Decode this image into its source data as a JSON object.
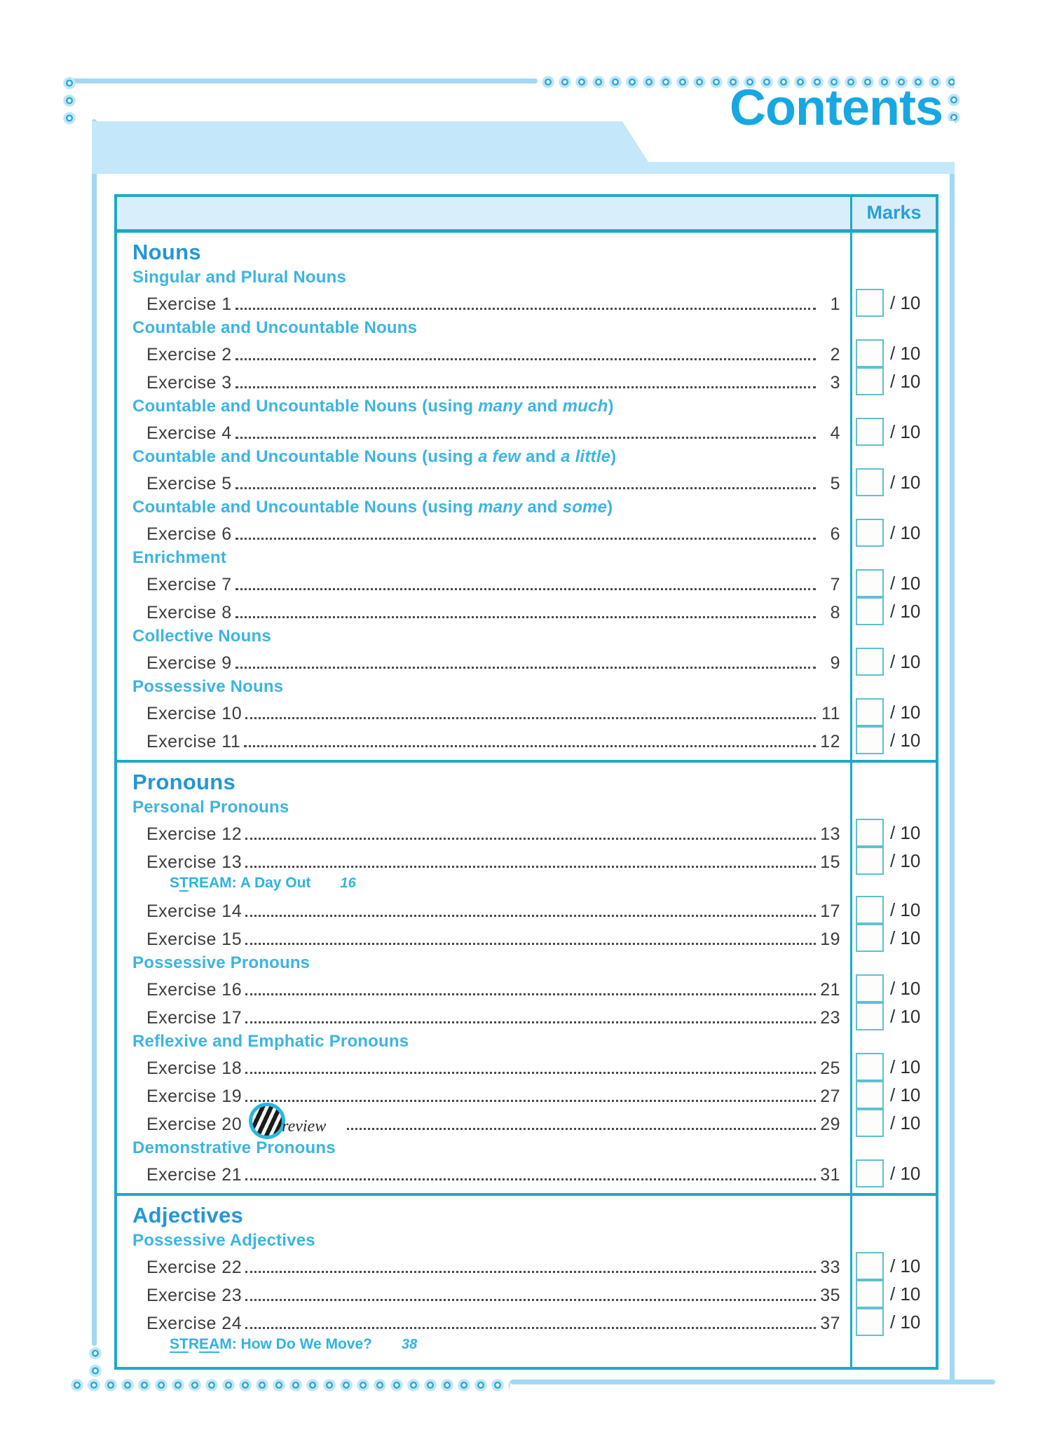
{
  "page": {
    "title": "Contents"
  },
  "colors": {
    "accent_blue": "#17a7e2",
    "section_blue": "#2496d6",
    "subheading_cyan": "#3cb4e3",
    "teal_border": "#1da9c6",
    "band_light_blue": "#c4e7fa",
    "header_fill": "#d9eefb",
    "mark_box_border": "#5fc0d0",
    "body_text": "#3d3d3d",
    "stream_cyan": "#2fb3e0"
  },
  "icons": {
    "preview_stamp": "preview-stamp-icon",
    "frame_dots": "decorative-dot-border"
  },
  "table": {
    "marks_header": "Marks",
    "marks_out_of": "/ 10",
    "sections": [
      {
        "title": "Nouns",
        "groups": [
          {
            "heading_parts": [
              {
                "text": "Singular and Plural Nouns"
              }
            ],
            "rows": [
              {
                "type": "exercise",
                "label": "Exercise 1",
                "page": "1",
                "marks": true
              }
            ]
          },
          {
            "heading_parts": [
              {
                "text": "Countable and Uncountable Nouns"
              }
            ],
            "rows": [
              {
                "type": "exercise",
                "label": "Exercise 2",
                "page": "2",
                "marks": true
              },
              {
                "type": "exercise",
                "label": "Exercise 3",
                "page": "3",
                "marks": true
              }
            ]
          },
          {
            "heading_parts": [
              {
                "text": "Countable and Uncountable Nouns (using "
              },
              {
                "text": "many",
                "italic": true
              },
              {
                "text": " and "
              },
              {
                "text": "much",
                "italic": true
              },
              {
                "text": ")"
              }
            ],
            "rows": [
              {
                "type": "exercise",
                "label": "Exercise 4",
                "page": "4",
                "marks": true
              }
            ]
          },
          {
            "heading_parts": [
              {
                "text": "Countable and Uncountable Nouns (using "
              },
              {
                "text": "a few",
                "italic": true
              },
              {
                "text": " and "
              },
              {
                "text": "a little",
                "italic": true
              },
              {
                "text": ")"
              }
            ],
            "rows": [
              {
                "type": "exercise",
                "label": "Exercise 5",
                "page": "5",
                "marks": true
              }
            ]
          },
          {
            "heading_parts": [
              {
                "text": "Countable and Uncountable Nouns (using "
              },
              {
                "text": "many",
                "italic": true
              },
              {
                "text": " and "
              },
              {
                "text": "some",
                "italic": true
              },
              {
                "text": ")"
              }
            ],
            "rows": [
              {
                "type": "exercise",
                "label": "Exercise 6",
                "page": "6",
                "marks": true
              }
            ]
          },
          {
            "heading_parts": [
              {
                "text": "Enrichment"
              }
            ],
            "rows": [
              {
                "type": "exercise",
                "label": "Exercise 7",
                "page": "7",
                "marks": true
              },
              {
                "type": "exercise",
                "label": "Exercise 8",
                "page": "8",
                "marks": true
              }
            ]
          },
          {
            "heading_parts": [
              {
                "text": "Collective Nouns"
              }
            ],
            "rows": [
              {
                "type": "exercise",
                "label": "Exercise 9",
                "page": "9",
                "marks": true
              }
            ]
          },
          {
            "heading_parts": [
              {
                "text": "Possessive Nouns"
              }
            ],
            "rows": [
              {
                "type": "exercise",
                "label": "Exercise 10",
                "page": "11",
                "marks": true
              },
              {
                "type": "exercise",
                "label": "Exercise 11",
                "page": "12",
                "marks": true
              }
            ]
          }
        ]
      },
      {
        "title": "Pronouns",
        "groups": [
          {
            "heading_parts": [
              {
                "text": "Personal Pronouns"
              }
            ],
            "rows": [
              {
                "type": "exercise",
                "label": "Exercise 12",
                "page": "13",
                "marks": true
              },
              {
                "type": "exercise",
                "label": "Exercise 13",
                "page": "15",
                "marks": true
              },
              {
                "type": "stream",
                "segments": [
                  {
                    "text": "S"
                  },
                  {
                    "text": "T",
                    "underline": true
                  },
                  {
                    "text": "REAM: A Day Out"
                  }
                ],
                "page": "16"
              },
              {
                "type": "exercise",
                "label": "Exercise 14",
                "page": "17",
                "marks": true
              },
              {
                "type": "exercise",
                "label": "Exercise 15",
                "page": "19",
                "marks": true
              }
            ]
          },
          {
            "heading_parts": [
              {
                "text": "Possessive Pronouns"
              }
            ],
            "rows": [
              {
                "type": "exercise",
                "label": "Exercise 16",
                "page": "21",
                "marks": true
              },
              {
                "type": "exercise",
                "label": "Exercise 17",
                "page": "23",
                "marks": true
              }
            ]
          },
          {
            "heading_parts": [
              {
                "text": "Reflexive and Emphatic Pronouns"
              }
            ],
            "rows": [
              {
                "type": "exercise",
                "label": "Exercise 18",
                "page": "25",
                "marks": true
              },
              {
                "type": "exercise",
                "label": "Exercise 19",
                "page": "27",
                "marks": true
              },
              {
                "type": "exercise",
                "label": "Exercise 20",
                "page": "29",
                "marks": true,
                "watermark": {
                  "text": "review"
                }
              }
            ]
          },
          {
            "heading_parts": [
              {
                "text": "Demonstrative Pronouns"
              }
            ],
            "rows": [
              {
                "type": "exercise",
                "label": "Exercise 21",
                "page": "31",
                "marks": true
              }
            ]
          }
        ]
      },
      {
        "title": "Adjectives",
        "groups": [
          {
            "heading_parts": [
              {
                "text": "Possessive Adjectives"
              }
            ],
            "rows": [
              {
                "type": "exercise",
                "label": "Exercise 22",
                "page": "33",
                "marks": true
              },
              {
                "type": "exercise",
                "label": "Exercise 23",
                "page": "35",
                "marks": true
              },
              {
                "type": "exercise",
                "label": "Exercise 24",
                "page": "37",
                "marks": true
              },
              {
                "type": "stream",
                "segments": [
                  {
                    "text": "ST",
                    "underline": true
                  },
                  {
                    "text": "R"
                  },
                  {
                    "text": "EA",
                    "underline": true
                  },
                  {
                    "text": "M: How Do We Move?"
                  }
                ],
                "page": "38"
              }
            ]
          }
        ]
      }
    ]
  }
}
